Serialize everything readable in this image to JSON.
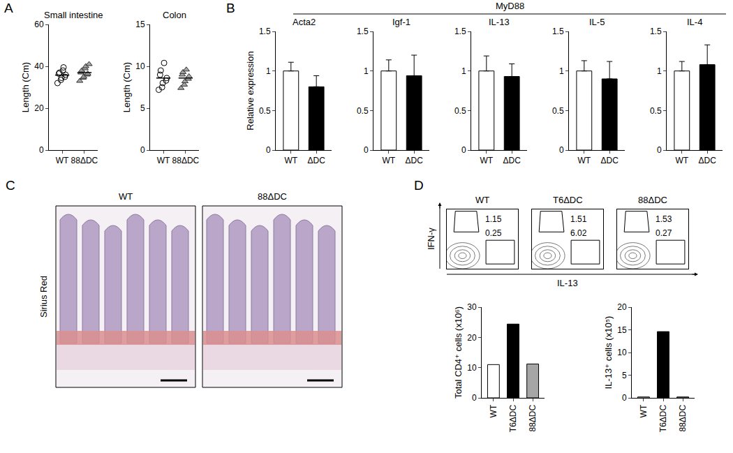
{
  "panel_labels": [
    "A",
    "B",
    "C",
    "D"
  ],
  "group_title": "MyD88",
  "image_panel": {
    "titles": [
      "WT",
      "88ΔDC"
    ],
    "stain": "Sirius Red"
  },
  "flow_axes": {
    "x_label": "IL-13",
    "y_label": "IFN-γ"
  },
  "chart_data": [
    {
      "type": "scatter",
      "title": "Small intestine",
      "y_label": "Length (Cm)",
      "categories": [
        "WT",
        "88ΔDC"
      ],
      "points": [
        [
          32,
          33.5,
          34.5,
          35,
          36,
          36.5,
          37,
          38,
          39.5
        ],
        [
          33,
          34.5,
          35,
          36,
          36.5,
          37,
          38,
          39,
          40,
          41
        ]
      ],
      "means": [
        35.8,
        37
      ],
      "markers": [
        "circle-open",
        "triangle-up"
      ],
      "colors": [
        "#000000",
        "#a6a6a6"
      ],
      "ylim": [
        0,
        60
      ],
      "yticks": [
        0,
        20,
        40,
        60
      ]
    },
    {
      "type": "scatter",
      "title": "Colon",
      "y_label": "Length (Cm)",
      "categories": [
        "WT",
        "88ΔDC"
      ],
      "points": [
        [
          7.2,
          7.5,
          8,
          8.3,
          8.6,
          9,
          9.5,
          10.4
        ],
        [
          7.4,
          7.8,
          8.2,
          8.5,
          8.8,
          9,
          9.3,
          9.6
        ]
      ],
      "means": [
        8.6,
        8.6
      ],
      "markers": [
        "circle-open",
        "triangle-up"
      ],
      "colors": [
        "#000000",
        "#a6a6a6"
      ],
      "ylim": [
        0,
        15
      ],
      "yticks": [
        0,
        5,
        10,
        15
      ]
    },
    {
      "type": "bar",
      "title": "Acta2",
      "y_label": "Relative expression",
      "categories": [
        "WT",
        "ΔDC"
      ],
      "values": [
        1,
        0.8
      ],
      "errors": [
        0.11,
        0.14
      ],
      "colors": [
        "#ffffff",
        "#000000"
      ],
      "ylim": [
        0,
        1.5
      ],
      "yticks": [
        0,
        0.5,
        1,
        1.5
      ]
    },
    {
      "type": "bar",
      "title": "Igf-1",
      "categories": [
        "WT",
        "ΔDC"
      ],
      "values": [
        1,
        0.94
      ],
      "errors": [
        0.14,
        0.26
      ],
      "colors": [
        "#ffffff",
        "#000000"
      ],
      "ylim": [
        0,
        1.5
      ],
      "yticks": [
        0,
        0.5,
        1,
        1.5
      ]
    },
    {
      "type": "bar",
      "title": "IL-13",
      "categories": [
        "WT",
        "ΔDC"
      ],
      "values": [
        1,
        0.93
      ],
      "errors": [
        0.19,
        0.16
      ],
      "colors": [
        "#ffffff",
        "#000000"
      ],
      "ylim": [
        0,
        1.5
      ],
      "yticks": [
        0,
        0.5,
        1,
        1.5
      ]
    },
    {
      "type": "bar",
      "title": "IL-5",
      "categories": [
        "WT",
        "ΔDC"
      ],
      "values": [
        1,
        0.9
      ],
      "errors": [
        0.13,
        0.22
      ],
      "colors": [
        "#ffffff",
        "#000000"
      ],
      "ylim": [
        0,
        1.5
      ],
      "yticks": [
        0,
        0.5,
        1,
        1.5
      ]
    },
    {
      "type": "bar",
      "title": "IL-4",
      "categories": [
        "WT",
        "ΔDC"
      ],
      "values": [
        1,
        1.08
      ],
      "errors": [
        0.12,
        0.25
      ],
      "colors": [
        "#ffffff",
        "#000000"
      ],
      "ylim": [
        0,
        1.5
      ],
      "yticks": [
        0,
        0.5,
        1,
        1.5
      ]
    },
    {
      "type": "flow",
      "title": "WT",
      "values": [
        1.15,
        0.25
      ]
    },
    {
      "type": "flow",
      "title": "T6ΔDC",
      "values": [
        1.51,
        6.02
      ]
    },
    {
      "type": "flow",
      "title": "88ΔDC",
      "values": [
        1.53,
        0.27
      ]
    },
    {
      "type": "bar",
      "y_label": "Total CD4⁺ cells (x10⁶)",
      "categories": [
        "WT",
        "T6ΔDC",
        "88ΔDC"
      ],
      "values": [
        11,
        24.4,
        11.2
      ],
      "colors": [
        "#ffffff",
        "#000000",
        "#a6a6a6"
      ],
      "ylim": [
        0,
        30
      ],
      "yticks": [
        0,
        10,
        20,
        30
      ]
    },
    {
      "type": "bar",
      "y_label": "IL-13⁺ cells (x10⁵)",
      "categories": [
        "WT",
        "T6ΔDC",
        "88ΔDC"
      ],
      "values": [
        0.2,
        14.6,
        0.2
      ],
      "colors": [
        "#ffffff",
        "#000000",
        "#a6a6a6"
      ],
      "ylim": [
        0,
        20
      ],
      "yticks": [
        0,
        5,
        10,
        15,
        20
      ]
    }
  ]
}
